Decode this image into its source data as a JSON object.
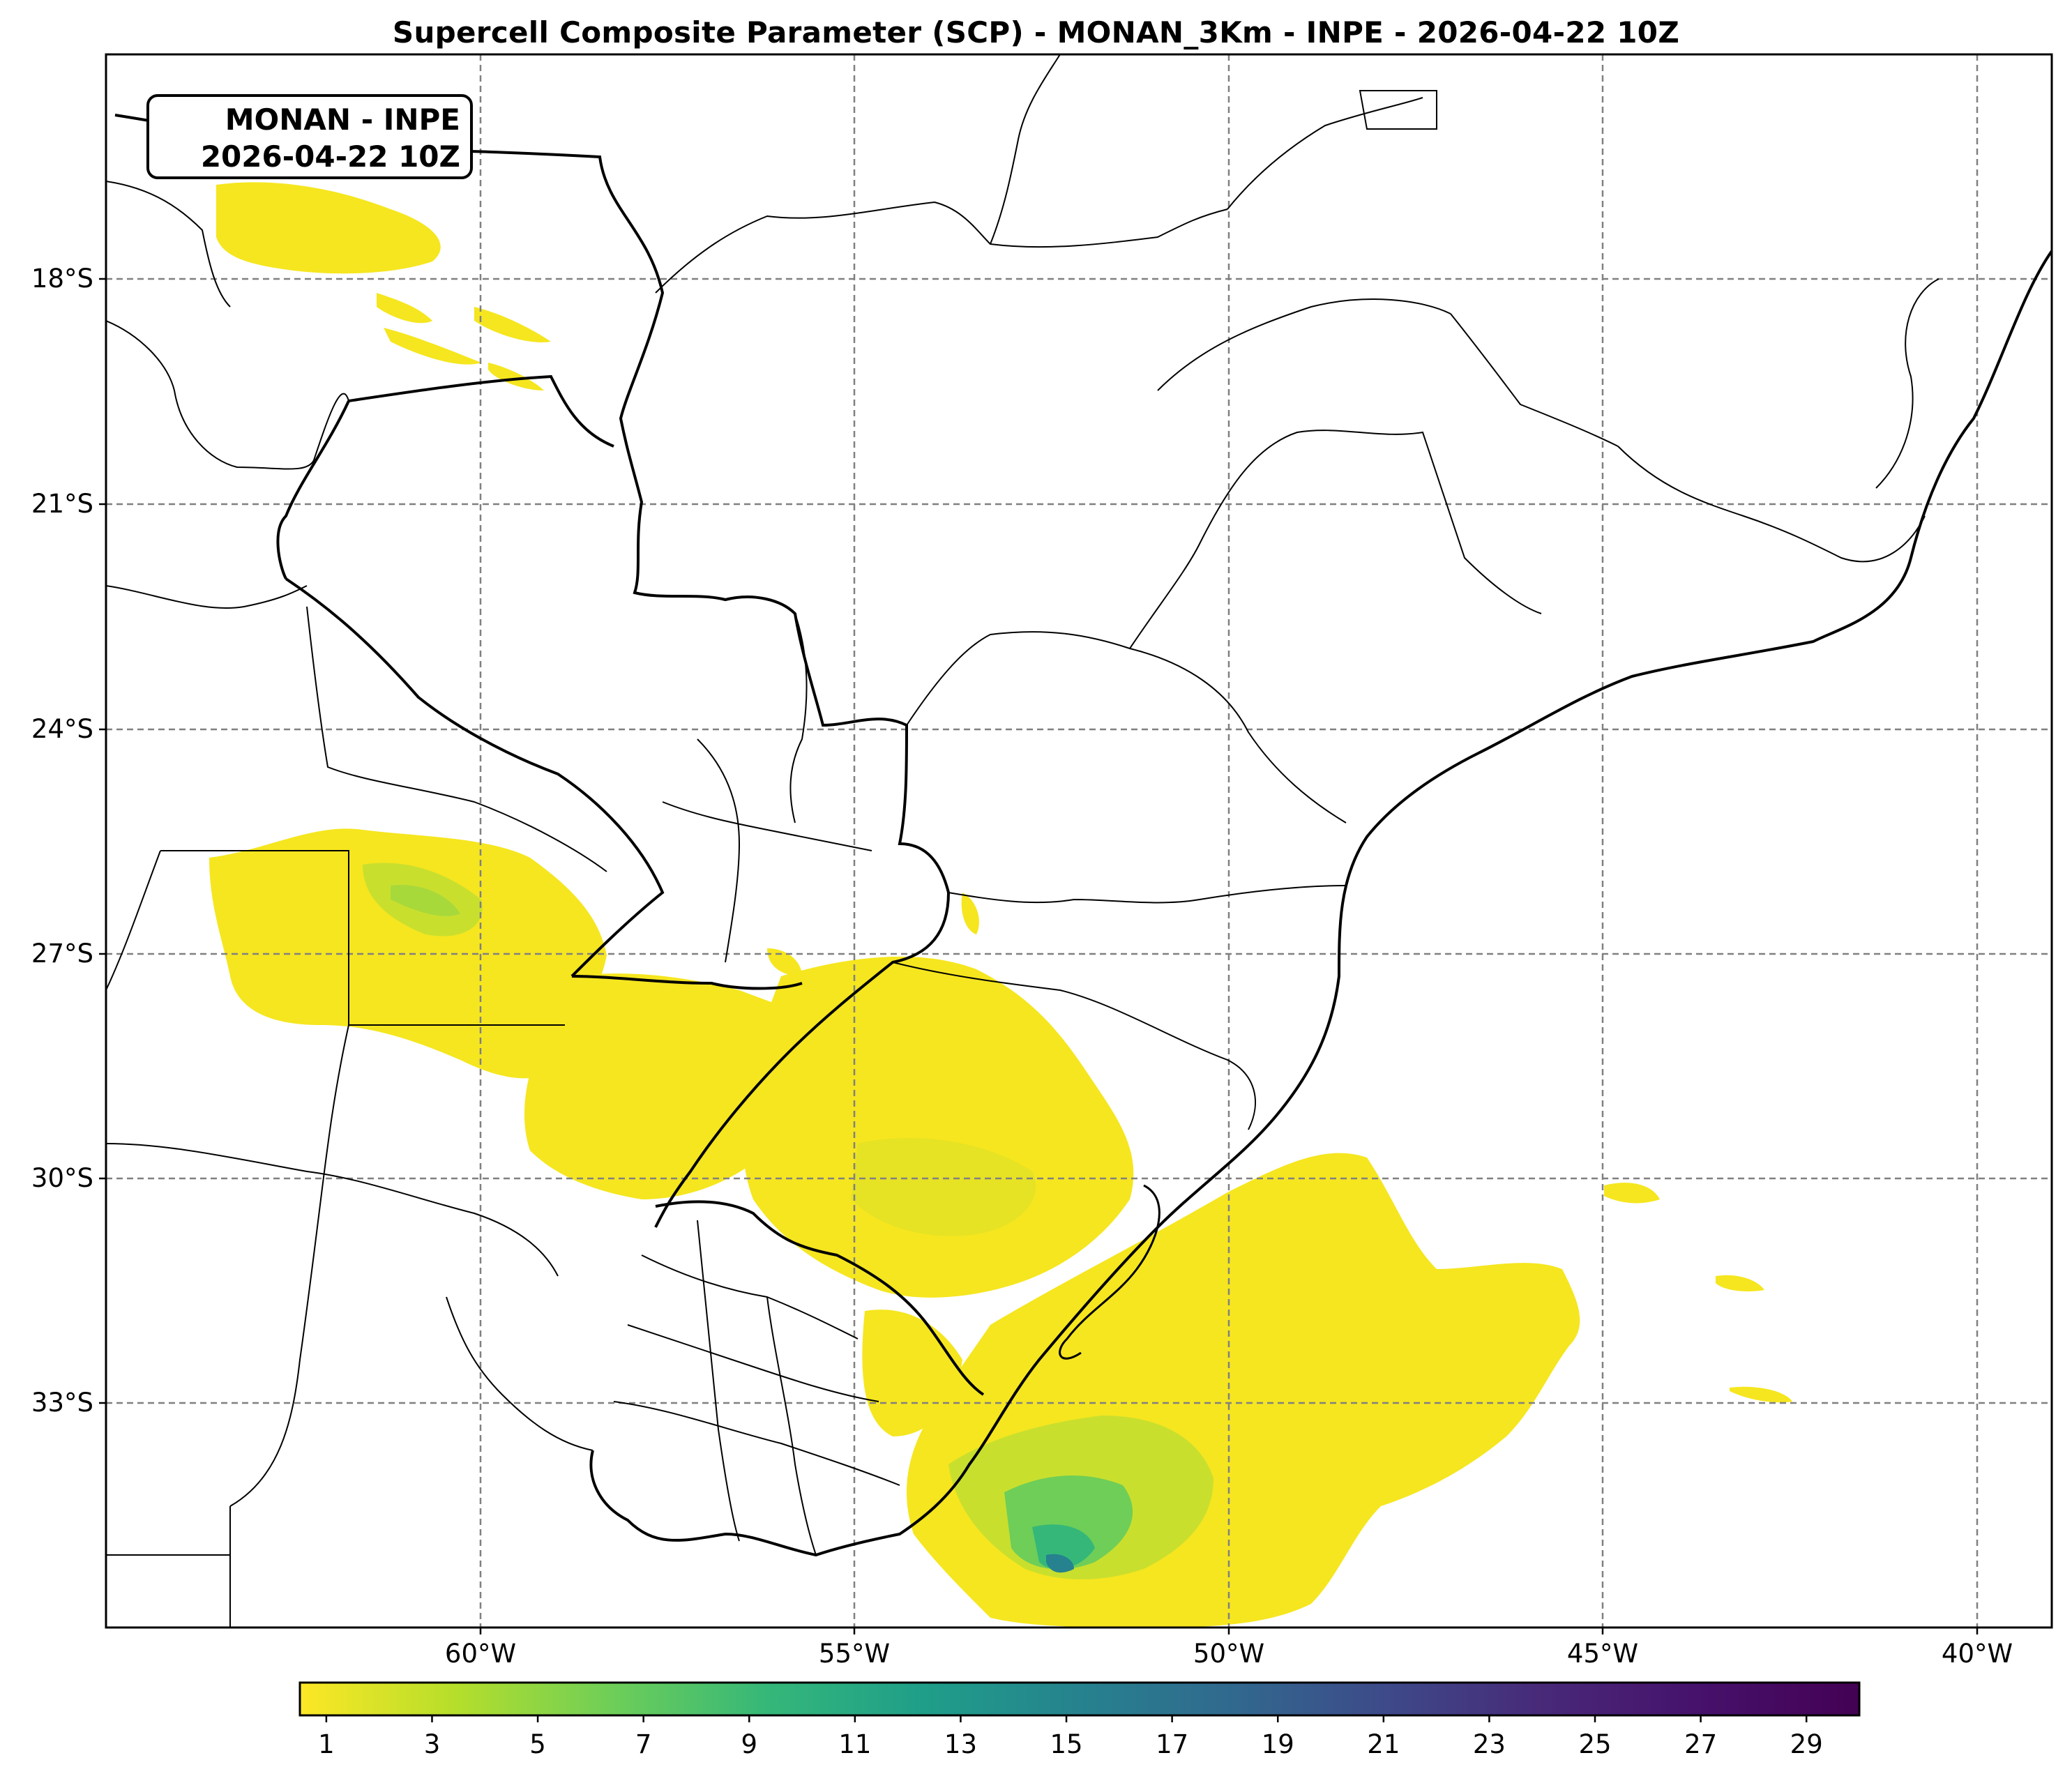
{
  "title": "Supercell Composite Parameter (SCP) - MONAN_3Km - INPE - 2026-04-22 10Z",
  "inset": {
    "line1": "MONAN - INPE",
    "line2": "2026-04-22 10Z"
  },
  "axes": {
    "lat_ticks": [
      "18°S",
      "21°S",
      "24°S",
      "27°S",
      "30°S",
      "33°S"
    ],
    "lon_ticks": [
      "60°W",
      "55°W",
      "50°W",
      "45°W",
      "40°W"
    ]
  },
  "colorbar": {
    "colormap": "viridis_r",
    "range": [
      0.5,
      30
    ],
    "ticks": [
      "1",
      "3",
      "5",
      "7",
      "9",
      "11",
      "13",
      "15",
      "17",
      "19",
      "21",
      "23",
      "25",
      "27",
      "29"
    ]
  },
  "map": {
    "extent_lon": [
      -65,
      -39
    ],
    "extent_lat": [
      -37,
      -16
    ],
    "field": "SCP",
    "colors": {
      "low": "#f5e61f",
      "mid": "#a8d93a",
      "high": "#21908c",
      "peak": "#2a788e",
      "border": "#000000",
      "grid": "#808080"
    }
  }
}
